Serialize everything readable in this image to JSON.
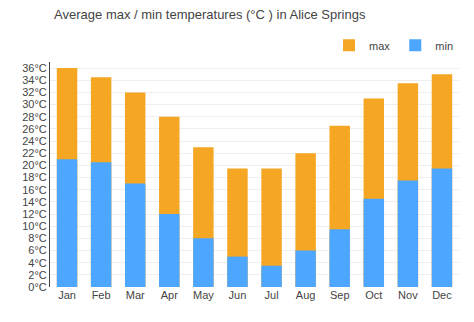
{
  "chart_data": {
    "type": "bar",
    "title": "Average max / min temperatures (°C ) in Alice Springs",
    "categories": [
      "Jan",
      "Feb",
      "Mar",
      "Apr",
      "May",
      "Jun",
      "Jul",
      "Aug",
      "Sep",
      "Oct",
      "Nov",
      "Dec"
    ],
    "series": [
      {
        "name": "max",
        "color": "#f5a623",
        "values": [
          36,
          34.5,
          32,
          28,
          23,
          19.5,
          19.5,
          22,
          26.5,
          31,
          33.5,
          35
        ]
      },
      {
        "name": "min",
        "color": "#4da6ff",
        "values": [
          21,
          20.5,
          17,
          12,
          8,
          5,
          3.5,
          6,
          9.5,
          14.5,
          17.5,
          19.5
        ]
      }
    ],
    "ylim": [
      0,
      37
    ],
    "yticks": [
      {
        "value": 0,
        "label": "0°C"
      },
      {
        "value": 2,
        "label": "2°C"
      },
      {
        "value": 4,
        "label": "4°C"
      },
      {
        "value": 6,
        "label": "6°C"
      },
      {
        "value": 8,
        "label": "8°C"
      },
      {
        "value": 10,
        "label": "10°C"
      },
      {
        "value": 12,
        "label": "12°C"
      },
      {
        "value": 14,
        "label": "14°C"
      },
      {
        "value": 16,
        "label": "16°C"
      },
      {
        "value": 18,
        "label": "18°C"
      },
      {
        "value": 20,
        "label": "20°C"
      },
      {
        "value": 22,
        "label": "22°C"
      },
      {
        "value": 24,
        "label": "24°C"
      },
      {
        "value": 26,
        "label": "26°C"
      },
      {
        "value": 28,
        "label": "28°C"
      },
      {
        "value": 30,
        "label": "30°C"
      },
      {
        "value": 32,
        "label": "32°C"
      },
      {
        "value": 34,
        "label": "34°C"
      },
      {
        "value": 36,
        "label": "36°C"
      }
    ],
    "grid": true,
    "legend": "upper right"
  }
}
